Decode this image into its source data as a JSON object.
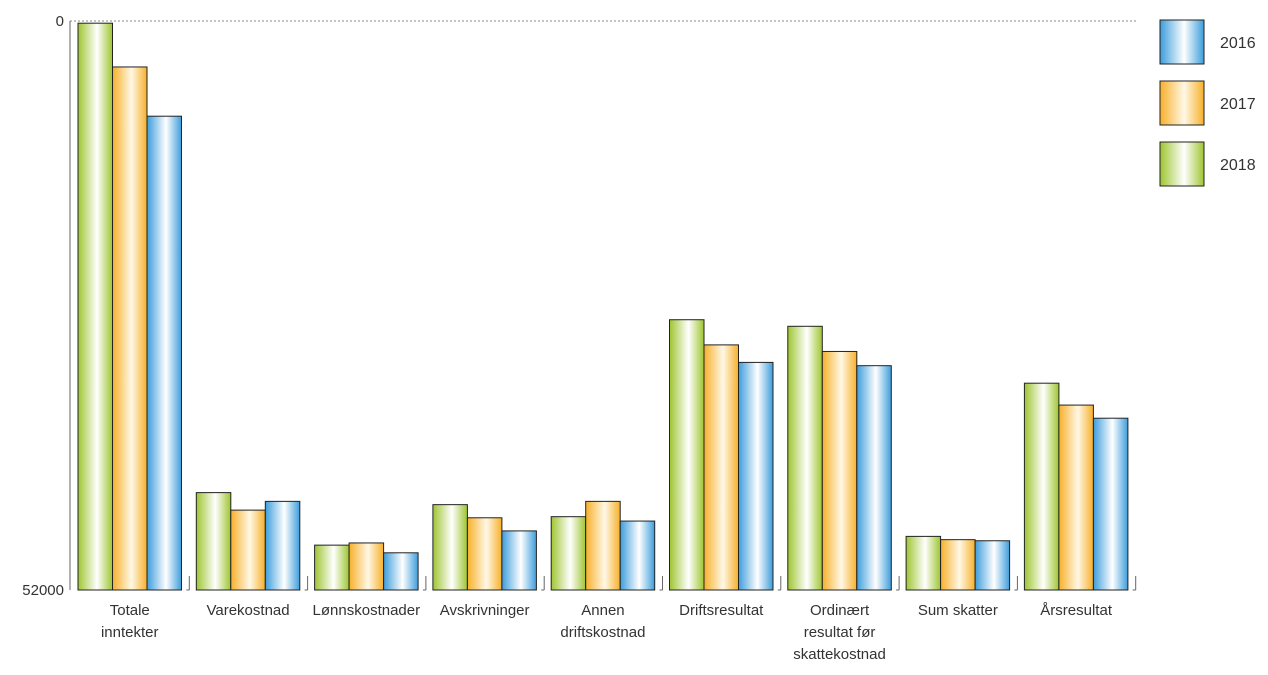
{
  "chart_data": {
    "type": "bar",
    "title": "",
    "xlabel": "",
    "ylabel": "",
    "ylim": [
      0,
      52000
    ],
    "y_ticks": [
      "0",
      "52000"
    ],
    "grid": "dotted line at maximum only",
    "legend_placement": "top-right",
    "categories": [
      [
        "Totale",
        "inntekter"
      ],
      [
        "Varekostnad"
      ],
      [
        "Lønnskostnader"
      ],
      [
        "Avskrivninger"
      ],
      [
        "Annen",
        "driftskostnad"
      ],
      [
        "Driftsresultat"
      ],
      [
        "Ordinært",
        "resultat før",
        "skattekostnad"
      ],
      [
        "Sum skatter"
      ],
      [
        "Årsresultat"
      ]
    ],
    "series": [
      {
        "name": "2018",
        "color": "#a8cc3c",
        "values": [
          51800,
          8900,
          4100,
          7800,
          6700,
          24700,
          24100,
          4900,
          18900
        ]
      },
      {
        "name": "2017",
        "color": "#f7b52e",
        "values": [
          47800,
          7300,
          4300,
          6600,
          8100,
          22400,
          21800,
          4600,
          16900
        ]
      },
      {
        "name": "2016",
        "color": "#4aa3de",
        "values": [
          43300,
          8100,
          3400,
          5400,
          6300,
          20800,
          20500,
          4500,
          15700
        ]
      }
    ],
    "legend_order": [
      "2016",
      "2017",
      "2018"
    ]
  }
}
